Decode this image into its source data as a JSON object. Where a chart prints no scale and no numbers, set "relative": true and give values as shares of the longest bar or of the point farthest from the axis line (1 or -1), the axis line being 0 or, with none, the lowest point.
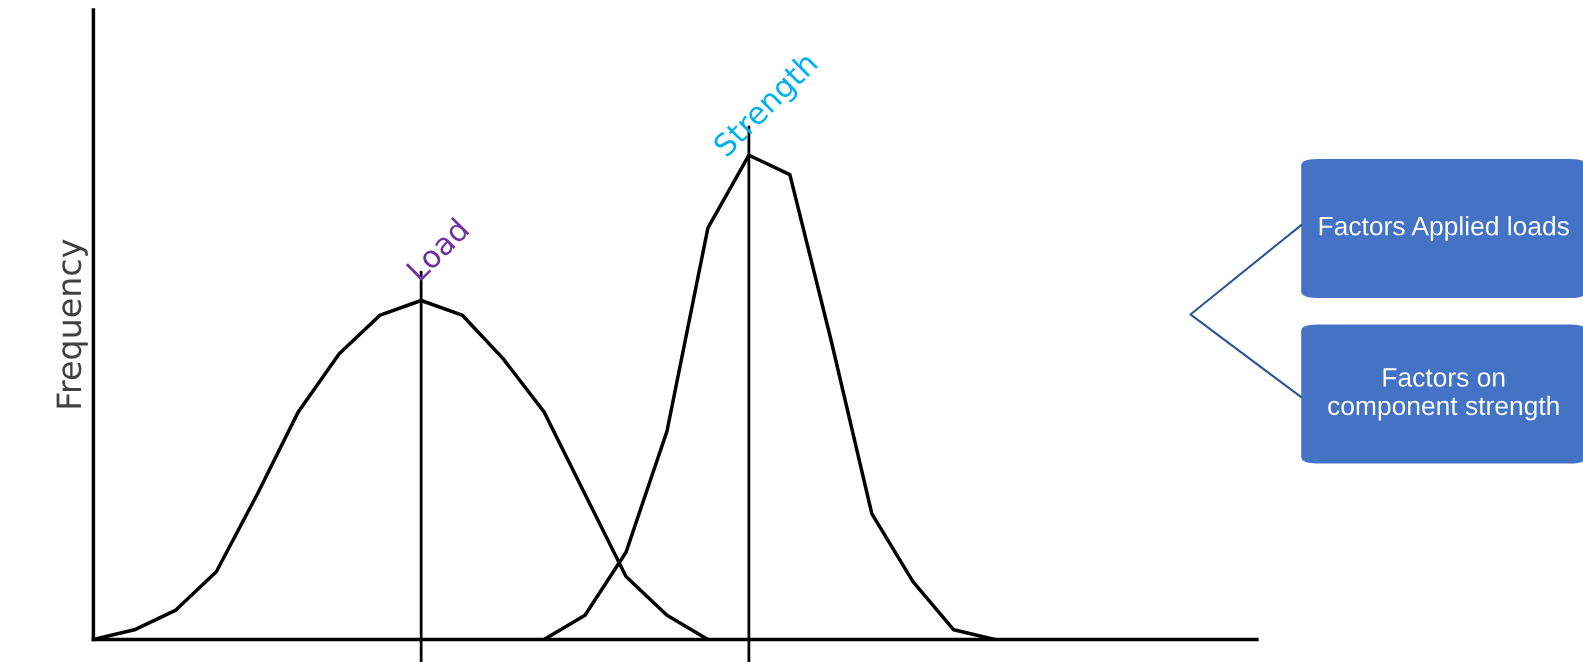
{
  "chart_data": {
    "type": "line",
    "relative": true,
    "ylabel": "Frequency",
    "categories": [
      null,
      null,
      null,
      null,
      null,
      null,
      null,
      null,
      null,
      null,
      null,
      null,
      null,
      null,
      null,
      null,
      null,
      null,
      null,
      null,
      null,
      null,
      null,
      null,
      null,
      null,
      null,
      null,
      null
    ],
    "series": [
      {
        "name": "Load",
        "color": "#000000",
        "values": [
          0,
          0.02,
          0.06,
          0.14,
          0.3,
          0.47,
          0.59,
          0.67,
          0.7,
          0.67,
          0.58,
          0.47,
          0.3,
          0.13,
          0.05,
          0,
          null,
          null,
          null,
          null,
          null,
          null,
          null,
          null,
          null,
          null,
          null,
          null,
          null
        ]
      },
      {
        "name": "Strength",
        "color": "#000000",
        "values": [
          null,
          null,
          null,
          null,
          null,
          null,
          null,
          null,
          null,
          null,
          null,
          0,
          0.05,
          0.18,
          0.43,
          0.85,
          1.0,
          0.96,
          0.62,
          0.26,
          0.12,
          0.02,
          0,
          null,
          null,
          null,
          null,
          null,
          null
        ]
      }
    ],
    "annotations": [
      "Factors Applied loads",
      "Factors on component strength"
    ],
    "legend": false,
    "marker": "none",
    "line_style": "solid"
  }
}
